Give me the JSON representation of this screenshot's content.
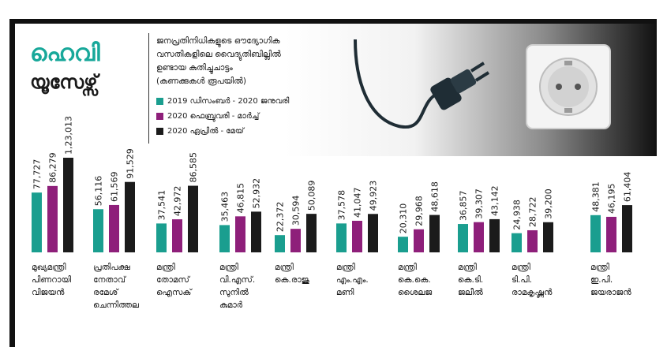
{
  "header": {
    "title_line1": "ഹെവി",
    "title_line2": "യൂസേഴ്സ്",
    "subtitle_lines": [
      "ജനപ്രതിനിധികളുടെ ഔദ്യോഗിക",
      "വസതികളിലെ വൈദ്യുതിബില്ലിൽ",
      "ഉണ്ടായ കുതിച്ചുചാട്ടം",
      "(കണക്കുകൾ രൂപയിൽ)"
    ]
  },
  "colors": {
    "teal": "#1a9e8f",
    "purple": "#8e1f7a",
    "black": "#1b1b1b",
    "title_teal": "#18a89a"
  },
  "icons": [
    "plug-icon",
    "socket-icon"
  ],
  "chart_data": {
    "type": "bar",
    "series": [
      {
        "name": "2019 ഡിസംബർ - 2020 ജനുവരി",
        "color": "#1a9e8f",
        "values": [
          77727,
          56116,
          37541,
          35463,
          22372,
          37578,
          20310,
          36857,
          24938,
          48381
        ],
        "labels": [
          "77,727",
          "56,116",
          "37,541",
          "35,463",
          "22,372",
          "37,578",
          "20,310",
          "36,857",
          "24,938",
          "48,381"
        ]
      },
      {
        "name": "2020 ഫെബ്രുവരി - മാർച്ച്",
        "color": "#8e1f7a",
        "values": [
          86279,
          61569,
          42972,
          46815,
          30594,
          41047,
          29968,
          39307,
          28722,
          46195
        ],
        "labels": [
          "86,279",
          "61,569",
          "42,972",
          "46,815",
          "30,594",
          "41,047",
          "29,968",
          "39,307",
          "28,722",
          "46,195"
        ]
      },
      {
        "name": "2020 ഏപ്രിൽ - മേയ്",
        "color": "#1b1b1b",
        "values": [
          123013,
          91529,
          86585,
          52932,
          50089,
          49923,
          48618,
          43142,
          39200,
          61404
        ],
        "labels": [
          "1,23,013",
          "91,529",
          "86,585",
          "52,932",
          "50,089",
          "49,923",
          "48,618",
          "43,142",
          "39,200",
          "61,404"
        ]
      }
    ],
    "categories": [
      [
        "മുഖ്യമന്ത്രി",
        "പിണറായി",
        "വിജയൻ"
      ],
      [
        "പ്രതിപക്ഷ",
        "നേതാവ്",
        "രമേശ്",
        "ചെന്നിത്തല"
      ],
      [
        "മന്ത്രി",
        "തോമസ്",
        "ഐസക്"
      ],
      [
        "മന്ത്രി",
        "വി.എസ്.",
        "സുനിൽ",
        "കുമാർ"
      ],
      [
        "മന്ത്രി",
        "കെ.രാജു"
      ],
      [
        "മന്ത്രി",
        "എം.എം.",
        "മണി"
      ],
      [
        "മന്ത്രി",
        "കെ.കെ.",
        "ശൈലജ"
      ],
      [
        "മന്ത്രി",
        "കെ.ടി.",
        "ജലീൽ"
      ],
      [
        "മന്ത്രി",
        "ടി.പി.",
        "രാമകൃഷ്ണൻ"
      ],
      [
        "മന്ത്രി",
        "ഇ.പി.",
        "ജയരാജൻ"
      ]
    ]
  }
}
